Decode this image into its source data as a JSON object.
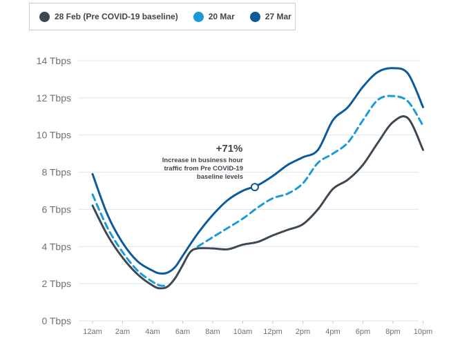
{
  "legend": [
    {
      "label": "28 Feb (Pre COVID-19 baseline)",
      "color": "#3d4852"
    },
    {
      "label": "20 Mar",
      "color": "#1a9ad9"
    },
    {
      "label": "27 Mar",
      "color": "#0b5a9a"
    }
  ],
  "annotation": {
    "headline": "+71%",
    "line1": "Increase in business hour",
    "line2": "traffic from Pre COVID-19",
    "line3": "baseline levels",
    "x_hour": 10.8,
    "y_value": 7.2
  },
  "chart_data": {
    "type": "line",
    "unit": "Tbps",
    "ylim": [
      0,
      14
    ],
    "xlim": [
      0,
      22
    ],
    "yticks": [
      0,
      2,
      4,
      6,
      8,
      10,
      12,
      14
    ],
    "ytick_labels": [
      "0 Tbps",
      "2 Tbps",
      "4 Tbps",
      "6 Tbps",
      "8 Tbps",
      "10 Tbps",
      "12 Tbps",
      "14 Tbps"
    ],
    "xtick_hours": [
      0,
      2,
      4,
      6,
      8,
      10,
      12,
      14,
      16,
      18,
      20,
      22
    ],
    "xtick_labels": [
      "12am",
      "2am",
      "4am",
      "6am",
      "8am",
      "10am",
      "12pm",
      "2pm",
      "4pm",
      "6pm",
      "8pm",
      "10pm"
    ],
    "grid": true,
    "legend_position": "top-left",
    "series": [
      {
        "name": "28 Feb (Pre COVID-19 baseline)",
        "color": "#3d4852",
        "dashed": false,
        "x": [
          0,
          1,
          2,
          3,
          4,
          4.5,
          5,
          5.5,
          6,
          6.5,
          7,
          8,
          9,
          10,
          11,
          12,
          13,
          14,
          15,
          16,
          17,
          18,
          19,
          20,
          21,
          22
        ],
        "y": [
          6.2,
          4.6,
          3.4,
          2.5,
          1.9,
          1.75,
          1.85,
          2.3,
          3.0,
          3.7,
          3.9,
          3.9,
          3.85,
          4.1,
          4.25,
          4.6,
          4.9,
          5.2,
          6.0,
          7.1,
          7.6,
          8.4,
          9.6,
          10.7,
          10.9,
          9.2
        ]
      },
      {
        "name": "20 Mar",
        "color": "#1a9ad9",
        "dashed": true,
        "x": [
          0,
          1,
          2,
          3,
          4,
          4.5,
          5
        ],
        "y": [
          6.8,
          5.0,
          3.7,
          2.7,
          2.1,
          1.9,
          1.9
        ]
      },
      {
        "name": "20 Mar",
        "color": "#1a9ad9",
        "dashed": true,
        "x": [
          7,
          8,
          9,
          10,
          11,
          12,
          13,
          14,
          15,
          16,
          17,
          18,
          19,
          20,
          21,
          22
        ],
        "y": [
          4.0,
          4.5,
          5.0,
          5.5,
          6.1,
          6.6,
          6.85,
          7.4,
          8.5,
          9.0,
          9.6,
          10.8,
          11.9,
          12.1,
          11.8,
          10.5
        ]
      },
      {
        "name": "27 Mar",
        "color": "#0b5a9a",
        "dashed": false,
        "x": [
          0,
          1,
          2,
          3,
          4,
          4.5,
          5,
          5.5,
          6,
          7,
          8,
          9,
          10,
          11,
          12,
          13,
          14,
          15,
          16,
          17,
          18,
          19,
          20,
          21,
          22
        ],
        "y": [
          7.9,
          5.7,
          4.2,
          3.2,
          2.7,
          2.55,
          2.6,
          2.9,
          3.5,
          4.7,
          5.7,
          6.5,
          7.0,
          7.3,
          7.8,
          8.4,
          8.8,
          9.2,
          10.8,
          11.5,
          12.6,
          13.4,
          13.6,
          13.3,
          11.5
        ]
      }
    ]
  }
}
